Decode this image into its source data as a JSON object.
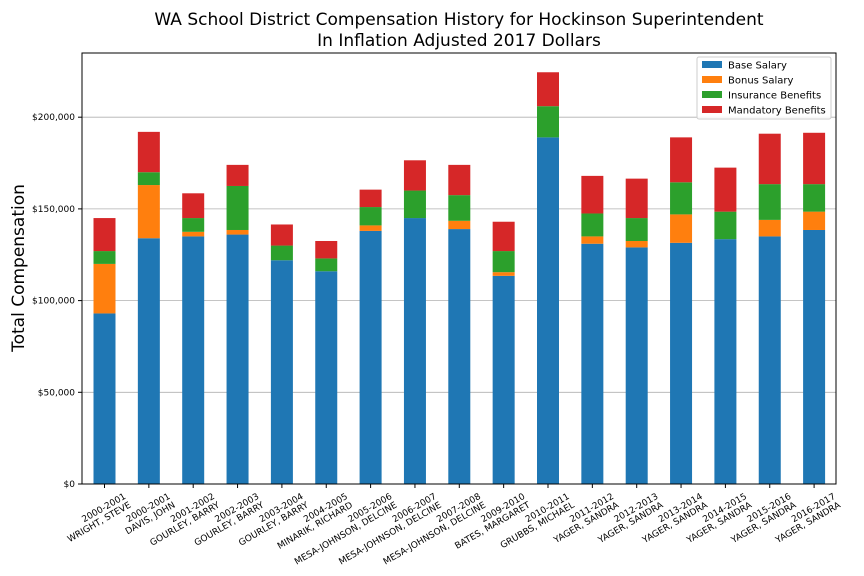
{
  "chart_data": {
    "type": "bar",
    "stacked": true,
    "title": "WA School District Compensation History for Hockinson Superintendent",
    "subtitle": "In Inflation Adjusted 2017 Dollars",
    "xlabel": "",
    "ylabel": "Total Compensation",
    "ylim": [
      0,
      235000
    ],
    "yticks": [
      0,
      50000,
      100000,
      150000,
      200000
    ],
    "ytick_labels": [
      "$0",
      "$50,000",
      "$100,000",
      "$150,000",
      "$200,000"
    ],
    "grid": "horizontal",
    "legend_position": "top-right",
    "categories": [
      [
        "2000-2001",
        "WRIGHT, STEVE"
      ],
      [
        "2000-2001",
        "DAVIS, JOHN"
      ],
      [
        "2001-2002",
        "GOURLEY, BARRY"
      ],
      [
        "2002-2003",
        "GOURLEY, BARRY"
      ],
      [
        "2003-2004",
        "GOURLEY, BARRY"
      ],
      [
        "2004-2005",
        "MINARIK, RICHARD"
      ],
      [
        "2005-2006",
        "MESA-JOHNSON, DELCINE"
      ],
      [
        "2006-2007",
        "MESA-JOHNSON, DELCINE"
      ],
      [
        "2007-2008",
        "MESA-JOHNSON, DELCINE"
      ],
      [
        "2009-2010",
        "BATES, MARGARET"
      ],
      [
        "2010-2011",
        "GRUBBS, MICHAEL"
      ],
      [
        "2011-2012",
        "YAGER, SANDRA"
      ],
      [
        "2012-2013",
        "YAGER, SANDRA"
      ],
      [
        "2013-2014",
        "YAGER, SANDRA"
      ],
      [
        "2014-2015",
        "YAGER, SANDRA"
      ],
      [
        "2015-2016",
        "YAGER, SANDRA"
      ],
      [
        "2016-2017",
        "YAGER, SANDRA"
      ]
    ],
    "series": [
      {
        "name": "Base Salary",
        "color": "#1f77b4",
        "values": [
          93000,
          134000,
          135000,
          136000,
          122000,
          116000,
          138000,
          145000,
          139000,
          113500,
          189000,
          131000,
          129000,
          131500,
          133500,
          135000,
          138500
        ]
      },
      {
        "name": "Bonus Salary",
        "color": "#ff7f0e",
        "values": [
          27000,
          29000,
          2500,
          2500,
          0,
          0,
          3000,
          0,
          4500,
          2000,
          0,
          4000,
          3500,
          15500,
          0,
          9000,
          10000
        ]
      },
      {
        "name": "Insurance Benefits",
        "color": "#2ca02c",
        "values": [
          7000,
          7000,
          7500,
          24000,
          8000,
          7000,
          10000,
          15000,
          14000,
          11500,
          17000,
          12500,
          12500,
          17500,
          15000,
          19500,
          15000
        ]
      },
      {
        "name": "Mandatory Benefits",
        "color": "#d62728",
        "values": [
          18000,
          22000,
          13500,
          11500,
          11500,
          9500,
          9500,
          16500,
          16500,
          16000,
          18500,
          20500,
          21500,
          24500,
          24000,
          27500,
          28000
        ]
      }
    ]
  }
}
